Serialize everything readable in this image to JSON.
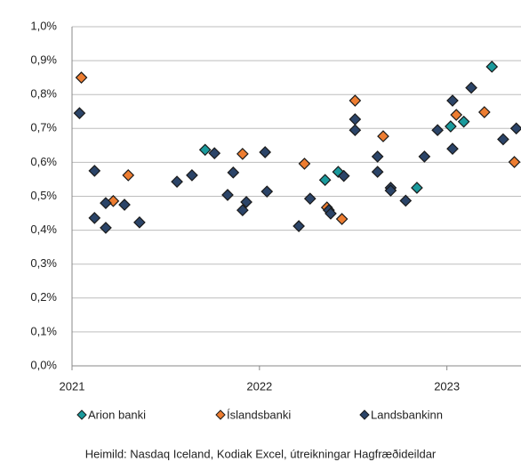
{
  "chart_data": {
    "type": "scatter",
    "xlim": [
      2021,
      2023.4
    ],
    "xticks": [
      2021,
      2022,
      2023
    ],
    "ylim": [
      0,
      1.0
    ],
    "yticks": [
      {
        "value": 0,
        "label": "0,0%"
      },
      {
        "value": 0.1,
        "label": "0,1%"
      },
      {
        "value": 0.2,
        "label": "0,2%"
      },
      {
        "value": 0.3,
        "label": "0,3%"
      },
      {
        "value": 0.4,
        "label": "0,4%"
      },
      {
        "value": 0.5,
        "label": "0,5%"
      },
      {
        "value": 0.6,
        "label": "0,6%"
      },
      {
        "value": 0.7,
        "label": "0,7%"
      },
      {
        "value": 0.8,
        "label": "0,8%"
      },
      {
        "value": 0.9,
        "label": "0,9%"
      },
      {
        "value": 1.0,
        "label": "1,0%"
      }
    ],
    "grid": true,
    "legend": "bottom",
    "series": [
      {
        "name": "Arion banki",
        "color": "#1a9a9c",
        "x": [
          2021.71,
          2022.35,
          2022.42,
          2022.84,
          2023.02,
          2023.09,
          2023.24
        ],
        "values": [
          0.637,
          0.548,
          0.572,
          0.525,
          0.706,
          0.72,
          0.882
        ]
      },
      {
        "name": "Íslandsbanki",
        "color": "#ed7d31",
        "x": [
          2021.05,
          2021.22,
          2021.3,
          2021.91,
          2022.24,
          2022.36,
          2022.44,
          2022.51,
          2022.66,
          2023.05,
          2023.2,
          2023.36
        ],
        "values": [
          0.85,
          0.486,
          0.562,
          0.625,
          0.596,
          0.467,
          0.433,
          0.782,
          0.677,
          0.74,
          0.748,
          0.601
        ]
      },
      {
        "name": "Landsbankinn",
        "color": "#2b4468",
        "x": [
          2021.04,
          2021.12,
          2021.12,
          2021.18,
          2021.18,
          2021.28,
          2021.36,
          2021.56,
          2021.64,
          2021.76,
          2021.83,
          2021.86,
          2021.91,
          2021.93,
          2022.03,
          2022.04,
          2022.21,
          2022.27,
          2022.37,
          2022.38,
          2022.45,
          2022.51,
          2022.51,
          2022.63,
          2022.63,
          2022.7,
          2022.7,
          2022.78,
          2022.88,
          2022.95,
          2023.03,
          2023.03,
          2023.13,
          2023.3,
          2023.37
        ],
        "values": [
          0.745,
          0.575,
          0.436,
          0.407,
          0.48,
          0.475,
          0.423,
          0.543,
          0.562,
          0.627,
          0.504,
          0.57,
          0.459,
          0.483,
          0.63,
          0.514,
          0.412,
          0.493,
          0.459,
          0.449,
          0.56,
          0.727,
          0.695,
          0.617,
          0.572,
          0.525,
          0.517,
          0.487,
          0.617,
          0.695,
          0.782,
          0.64,
          0.82,
          0.668,
          0.7
        ]
      }
    ],
    "source": "Heimild: Nasdaq Iceland, Kodiak Excel, útreikningar Hagfræðideildar"
  }
}
